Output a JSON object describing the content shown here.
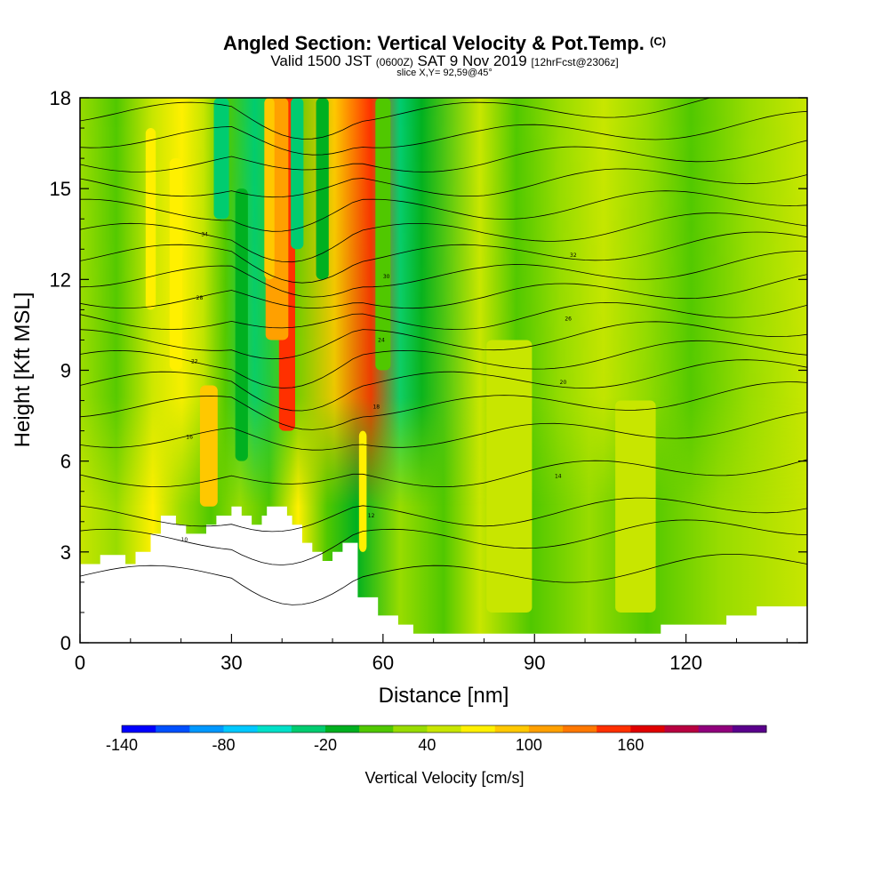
{
  "header": {
    "title_main": "Angled Section: Vertical Velocity & Pot.Temp.",
    "title_units": "(C)",
    "valid_prefix": "Valid 1500 JST",
    "valid_zulu": "(0600Z)",
    "valid_date": "SAT 9 Nov 2019",
    "forecast": "[12hrFcst@2306z]",
    "slice": "slice X,Y= 92,59@45°"
  },
  "chart_data": {
    "type": "heatmap",
    "title": "Angled Section: Vertical Velocity & Pot.Temp. (C)",
    "xlabel": "Distance [nm]",
    "ylabel": "Height [Kft MSL]",
    "xlim": [
      0,
      144
    ],
    "ylim": [
      0,
      18
    ],
    "x_ticks": [
      "0",
      "30",
      "60",
      "90",
      "120"
    ],
    "x_tick_values": [
      0,
      30,
      60,
      90,
      120
    ],
    "y_ticks": [
      "0",
      "3",
      "6",
      "9",
      "12",
      "15",
      "18"
    ],
    "y_tick_values": [
      0,
      3,
      6,
      9,
      12,
      15,
      18
    ],
    "grid": false,
    "colorbar": {
      "title": "Vertical Velocity [cm/s]",
      "min": -140,
      "step": 20,
      "tick_labels": [
        "-140",
        "-80",
        "-20",
        "40",
        "100",
        "160"
      ],
      "tick_values": [
        -140,
        -80,
        -20,
        40,
        100,
        160
      ],
      "colors": [
        "#0000ff",
        "#0050ff",
        "#0098ff",
        "#00c8ff",
        "#00e0c8",
        "#00cc70",
        "#00b020",
        "#50c800",
        "#98dc00",
        "#c8e600",
        "#fff000",
        "#ffc800",
        "#ffa000",
        "#ff7800",
        "#ff3000",
        "#e00000",
        "#b80040",
        "#90007c",
        "#5a008c"
      ]
    },
    "terrain_kft": [
      [
        0,
        2.0
      ],
      [
        0,
        2.6
      ],
      [
        4,
        2.6
      ],
      [
        4,
        2.9
      ],
      [
        9,
        2.9
      ],
      [
        9,
        2.6
      ],
      [
        11,
        2.6
      ],
      [
        11,
        3.0
      ],
      [
        14,
        3.0
      ],
      [
        14,
        3.6
      ],
      [
        16,
        3.6
      ],
      [
        16,
        4.2
      ],
      [
        19,
        4.2
      ],
      [
        19,
        3.9
      ],
      [
        21,
        3.9
      ],
      [
        21,
        3.6
      ],
      [
        25,
        3.6
      ],
      [
        25,
        3.9
      ],
      [
        27,
        3.9
      ],
      [
        27,
        4.2
      ],
      [
        30,
        4.2
      ],
      [
        30,
        4.5
      ],
      [
        32,
        4.5
      ],
      [
        32,
        4.2
      ],
      [
        34,
        4.2
      ],
      [
        34,
        3.9
      ],
      [
        36,
        3.9
      ],
      [
        36,
        4.2
      ],
      [
        37,
        4.2
      ],
      [
        37,
        4.5
      ],
      [
        41,
        4.5
      ],
      [
        41,
        4.2
      ],
      [
        42,
        4.2
      ],
      [
        42,
        3.9
      ],
      [
        44,
        3.9
      ],
      [
        44,
        3.3
      ],
      [
        46,
        3.3
      ],
      [
        46,
        3.0
      ],
      [
        48,
        3.0
      ],
      [
        48,
        2.7
      ],
      [
        50,
        2.7
      ],
      [
        50,
        3.0
      ],
      [
        52,
        3.0
      ],
      [
        52,
        3.3
      ],
      [
        55,
        3.3
      ],
      [
        55,
        1.5
      ],
      [
        59,
        1.5
      ],
      [
        59,
        0.9
      ],
      [
        63,
        0.9
      ],
      [
        63,
        0.6
      ],
      [
        66,
        0.6
      ],
      [
        66,
        0.3
      ],
      [
        68,
        0.3
      ],
      [
        68,
        0.3
      ],
      [
        110,
        0.3
      ],
      [
        110,
        0.3
      ],
      [
        115,
        0.3
      ],
      [
        115,
        0.6
      ],
      [
        128,
        0.6
      ],
      [
        128,
        0.9
      ],
      [
        134,
        0.9
      ],
      [
        134,
        1.2
      ],
      [
        144,
        1.2
      ],
      [
        144,
        0
      ],
      [
        0,
        0
      ]
    ],
    "isentrope_labels": [
      "10",
      "12",
      "14",
      "16",
      "18",
      "20",
      "22",
      "24",
      "26",
      "28",
      "30",
      "32",
      "34"
    ]
  }
}
